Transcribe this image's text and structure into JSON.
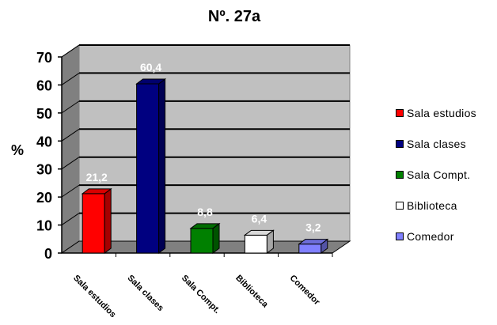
{
  "chart_data": {
    "type": "bar",
    "title": "Nº. 27a",
    "ylabel": "%",
    "xlabel": "",
    "ylim": [
      0,
      70
    ],
    "yticks": [
      0,
      10,
      20,
      30,
      40,
      50,
      60,
      70
    ],
    "grid": true,
    "three_d": true,
    "legend_position": "right",
    "categories": [
      "Sala estudios",
      "Sala clases",
      "Sala Compt.",
      "Biblioteca",
      "Comedor"
    ],
    "x_tick_labels": [
      "Sala estudios",
      "Sala clases",
      "Sala Compt.",
      "Biblioteca",
      "Comedor"
    ],
    "values": [
      21.2,
      60.4,
      8.8,
      6.4,
      3.2
    ],
    "data_labels": [
      "21,2",
      "60,4",
      "8,8",
      "6,4",
      "3,2"
    ],
    "colors": [
      "#ff0000",
      "#000080",
      "#008000",
      "#ffffff",
      "#8080ff"
    ],
    "legend": [
      {
        "label": "Sala estudios",
        "color": "#ff0000"
      },
      {
        "label": "Sala clases",
        "color": "#000080"
      },
      {
        "label": "Sala Compt.",
        "color": "#008000"
      },
      {
        "label": "Biblioteca",
        "color": "#ffffff"
      },
      {
        "label": "Comedor",
        "color": "#8080ff"
      }
    ],
    "plot_background": "#c0c0c0"
  }
}
